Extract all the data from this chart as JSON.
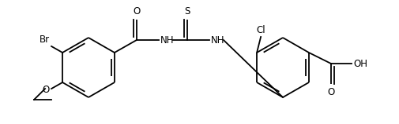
{
  "background_color": "#ffffff",
  "line_color": "#000000",
  "line_width": 1.3,
  "font_size": 8.5,
  "fig_width": 5.06,
  "fig_height": 1.58,
  "dpi": 100,
  "xlim": [
    0,
    506
  ],
  "ylim": [
    0,
    158
  ]
}
